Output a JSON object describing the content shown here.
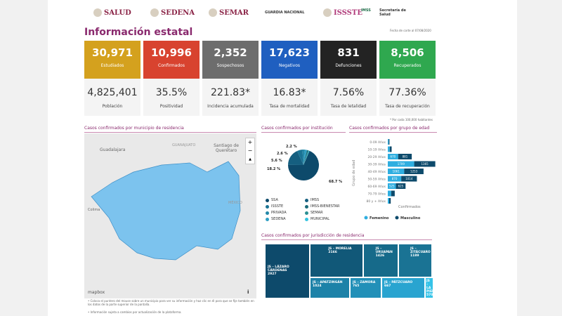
{
  "header": {
    "logos": [
      "SALUD",
      "SEDENA",
      "SEMAR",
      "GUARDIA NACIONAL",
      "ISSSTE",
      "IMSS",
      "Secretaría de Salud"
    ],
    "title": "Información estatal",
    "date": "Fecha de corte al 07/08/2020"
  },
  "cards": [
    {
      "number": "30,971",
      "label": "Estudiados",
      "value": "4,825,401",
      "sub": "Población",
      "color": "#d4a11e"
    },
    {
      "number": "10,996",
      "label": "Confirmados",
      "value": "35.5%",
      "sub": "Positividad",
      "color": "#d8432f"
    },
    {
      "number": "2,352",
      "label": "Sospechosos",
      "value": "221.83*",
      "sub": "Incidencia acumulada",
      "color": "#6d6d6d"
    },
    {
      "number": "17,623",
      "label": "Negativos",
      "value": "16.83*",
      "sub": "Tasa de mortalidad",
      "color": "#1f5fc0"
    },
    {
      "number": "831",
      "label": "Defunciones",
      "value": "7.56%",
      "sub": "Tasa de letalidad",
      "color": "#232323"
    },
    {
      "number": "8,506",
      "label": "Recuperados",
      "value": "77.36%",
      "sub": "Tasa de recuperación",
      "color": "#2fa84f"
    }
  ],
  "footnote": "* Por cada 100,000 habitantes",
  "map": {
    "title": "Casos confirmados por municipio de residencia",
    "labels": [
      "Guadalajara",
      "GUANAJUATO",
      "Santiago de Querétaro",
      "Colima",
      "MÉXICO"
    ],
    "attribution": "mapbox",
    "zoom_in": "+",
    "zoom_out": "−",
    "compass": "▲",
    "info": "i"
  },
  "institution": {
    "title": "Casos confirmados por institución",
    "slices": [
      {
        "name": "SSA",
        "pct": 68.7,
        "color": "#0d4a6b"
      },
      {
        "name": "IMSS",
        "pct": 18.2,
        "color": "#155f80"
      },
      {
        "name": "ISSSTE",
        "pct": 5.6,
        "color": "#1a7394"
      },
      {
        "name": "PRIVADA",
        "pct": 2.6,
        "color": "#2388a8"
      },
      {
        "name": "SEDENA",
        "pct": 2.2,
        "color": "#2f9fc4"
      },
      {
        "name": "IMSS-BIENESTAR",
        "pct": 1.4,
        "color": "#1b6b7a"
      },
      {
        "name": "SEMAR",
        "pct": 0.8,
        "color": "#2a8f93"
      },
      {
        "name": "MUNICIPAL",
        "pct": 0.5,
        "color": "#35c3e0"
      }
    ],
    "labels": [
      "2.2 %",
      "2.6 %",
      "5.6 %",
      "18.2 %",
      "68.7 %"
    ]
  },
  "age": {
    "title": "Casos confirmados por grupo de edad",
    "ylabel": "Grupo de edad",
    "xlabel": "Confirmados",
    "legend": [
      "Femenino",
      "Masculino"
    ],
    "colors": [
      "#2eaee0",
      "#0d4a6b"
    ],
    "groups": [
      "0-09 Años",
      "10-19 Años",
      "20-29 Años",
      "30-39 Años",
      "40-49 Años",
      "50-59 Años",
      "60-69 Años",
      "70-79 Años",
      "80 y + Años"
    ],
    "female": [
      60,
      130,
      670,
      1709,
      1061,
      870,
      525,
      220,
      90
    ],
    "male": [
      50,
      120,
      881,
      1365,
      1253,
      1014,
      625,
      230,
      100
    ],
    "shown_labels": [
      false,
      false,
      true,
      true,
      true,
      true,
      true,
      false,
      false
    ]
  },
  "treemap": {
    "title": "Casos confirmados por jurisdicción de residencia",
    "items": [
      {
        "name": "JS – LÁZARO CÁRDENAS",
        "value": "2927",
        "color": "#0d4a6b"
      },
      {
        "name": "JS – MORELIA",
        "value": "2166",
        "color": "#115878"
      },
      {
        "name": "JS – URUAPAN",
        "value": "1426",
        "color": "#166a8a"
      },
      {
        "name": "JS – ZITÁCUARO",
        "value": "1189",
        "color": "#1a7394"
      },
      {
        "name": "JS – APATZINGÁN",
        "value": "1024",
        "color": "#1d82a8"
      },
      {
        "name": "JS – ZAMORA",
        "value": "765",
        "color": "#2290b8"
      },
      {
        "name": "JS – PÁTZCUARO",
        "value": "667",
        "color": "#29a4d0"
      },
      {
        "name": "JS – LA PIEDAD",
        "value": "570",
        "color": "#35c3e8"
      }
    ]
  },
  "notes": [
    "Coloca el puntero del mouse sobre un municipio para ver su información y haz clic en él para que se fije también en los datos de la parte superior de la pantalla.",
    "Información sujeta a cambios por actualización de la plataforma."
  ]
}
